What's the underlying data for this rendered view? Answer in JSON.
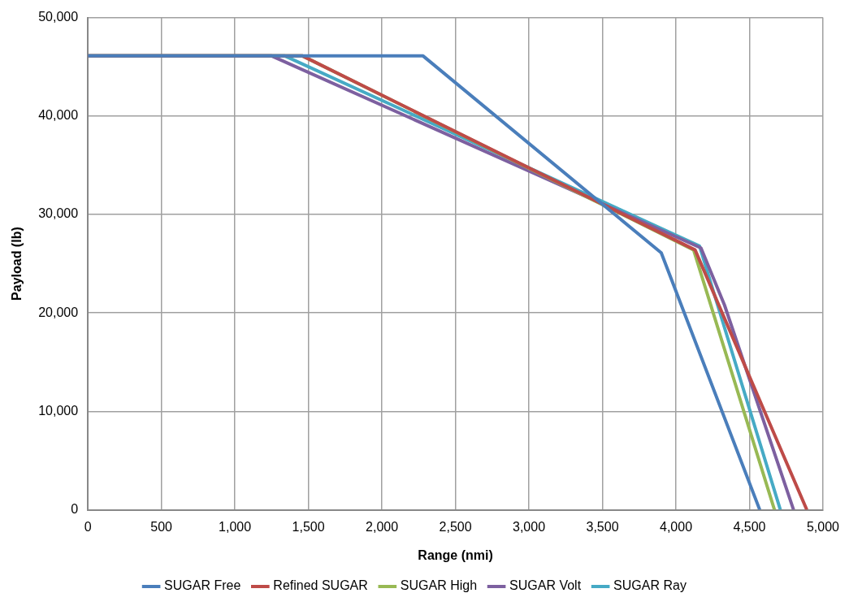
{
  "chart_data": {
    "type": "line",
    "xlabel": "Range (nmi)",
    "ylabel": "Payload (lb)",
    "xlim": [
      0,
      5000
    ],
    "ylim": [
      0,
      50000
    ],
    "xticks": [
      0,
      500,
      {
        "value": 1000,
        "label": "1,000"
      },
      {
        "value": 1500,
        "label": "1,500"
      },
      {
        "value": 2000,
        "label": "2,000"
      },
      {
        "value": 2500,
        "label": "2,500"
      },
      {
        "value": 3000,
        "label": "3,000"
      },
      {
        "value": 3500,
        "label": "3,500"
      },
      {
        "value": 4000,
        "label": "4,000"
      },
      {
        "value": 4500,
        "label": "4,500"
      },
      {
        "value": 5000,
        "label": "5,000"
      }
    ],
    "yticks": [
      0,
      {
        "value": 10000,
        "label": "10,000"
      },
      {
        "value": 20000,
        "label": "20,000"
      },
      {
        "value": 30000,
        "label": "30,000"
      },
      {
        "value": 40000,
        "label": "40,000"
      },
      {
        "value": 50000,
        "label": "50,000"
      }
    ],
    "grid": true,
    "legend": "bottom",
    "marker": "none",
    "line_style": "solid",
    "series": [
      {
        "name": "SUGAR Free",
        "color": "#4a7ebb",
        "x": [
          0,
          2280,
          3900,
          4570
        ],
        "values": [
          46100,
          46100,
          26100,
          0
        ]
      },
      {
        "name": "Refined SUGAR",
        "color": "#be4b48",
        "x": [
          0,
          1460,
          4130,
          4890
        ],
        "values": [
          46100,
          46100,
          26400,
          0
        ]
      },
      {
        "name": "SUGAR High",
        "color": "#98b954",
        "x": [
          0,
          1460,
          4120,
          4670
        ],
        "values": [
          46100,
          46100,
          26400,
          0
        ]
      },
      {
        "name": "SUGAR Volt",
        "color": "#7d60a0",
        "x": [
          0,
          1250,
          4170,
          4330,
          4800
        ],
        "values": [
          46100,
          46100,
          26600,
          20800,
          0
        ]
      },
      {
        "name": "SUGAR Ray",
        "color": "#46aac5",
        "x": [
          0,
          1340,
          4160,
          4710
        ],
        "values": [
          46100,
          46100,
          26800,
          0
        ]
      }
    ]
  }
}
